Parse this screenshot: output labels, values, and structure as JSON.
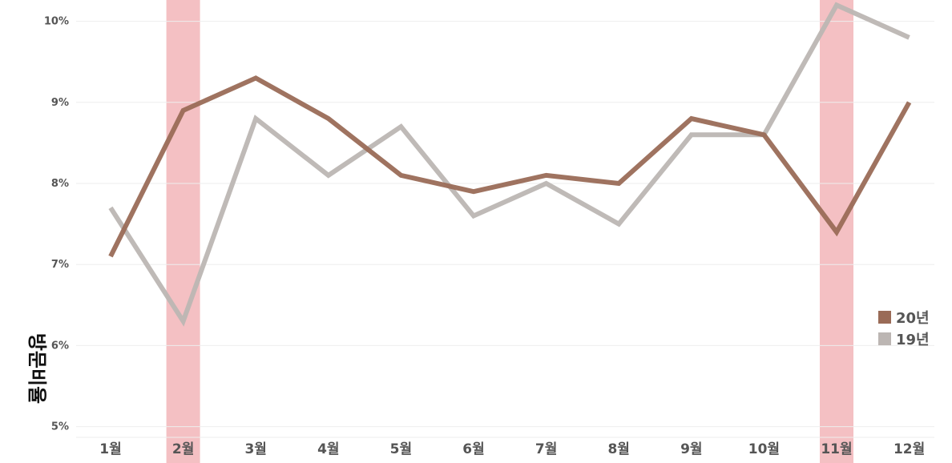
{
  "chart_data": {
    "type": "line",
    "title": "",
    "xlabel": "",
    "ylabel": "방문비율",
    "categories": [
      "1월",
      "2월",
      "3월",
      "4월",
      "5월",
      "6월",
      "7월",
      "8월",
      "9월",
      "10월",
      "11월",
      "12월"
    ],
    "y_ticks": [
      "5%",
      "6%",
      "7%",
      "8%",
      "9%",
      "10%"
    ],
    "y_tick_values": [
      5,
      6,
      7,
      8,
      9,
      10
    ],
    "ylim": [
      4.9,
      10.3
    ],
    "grid": true,
    "legend_position": "right",
    "highlighted_categories": [
      "2월",
      "11월"
    ],
    "series": [
      {
        "name": "20년",
        "color": "#9a6b57",
        "values": [
          7.1,
          8.9,
          9.3,
          8.8,
          8.1,
          7.9,
          8.1,
          8.0,
          8.8,
          8.6,
          7.4,
          9.0
        ]
      },
      {
        "name": "19년",
        "color": "#bcb6b3",
        "values": [
          7.7,
          6.3,
          8.8,
          8.1,
          8.7,
          7.6,
          8.0,
          7.5,
          8.6,
          8.6,
          10.2,
          9.8
        ]
      }
    ],
    "colors": {
      "highlight": "#f4c0c3",
      "grid": "#eeeeee",
      "tick_text": "#555555"
    }
  }
}
